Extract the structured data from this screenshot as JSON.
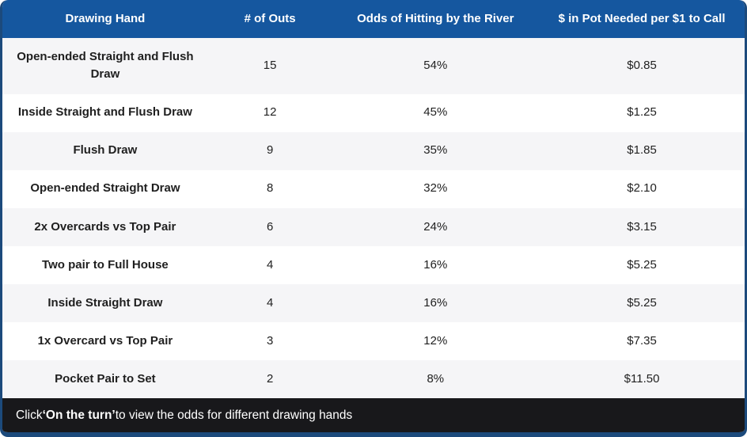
{
  "table": {
    "headers": [
      "Drawing Hand",
      "# of Outs",
      "Odds of Hitting by the River",
      "$ in Pot Needed per $1 to Call"
    ],
    "rows": [
      {
        "hand": "Open-ended Straight and Flush Draw",
        "outs": "15",
        "odds": "54%",
        "pot": "$0.85"
      },
      {
        "hand": "Inside Straight and Flush Draw",
        "outs": "12",
        "odds": "45%",
        "pot": "$1.25"
      },
      {
        "hand": "Flush Draw",
        "outs": "9",
        "odds": "35%",
        "pot": "$1.85"
      },
      {
        "hand": "Open-ended Straight Draw",
        "outs": "8",
        "odds": "32%",
        "pot": "$2.10"
      },
      {
        "hand": "2x Overcards vs Top Pair",
        "outs": "6",
        "odds": "24%",
        "pot": "$3.15"
      },
      {
        "hand": "Two pair to Full House",
        "outs": "4",
        "odds": "16%",
        "pot": "$5.25"
      },
      {
        "hand": "Inside Straight Draw",
        "outs": "4",
        "odds": "16%",
        "pot": "$5.25"
      },
      {
        "hand": "1x Overcard vs Top Pair",
        "outs": "3",
        "odds": "12%",
        "pot": "$7.35"
      },
      {
        "hand": "Pocket Pair to Set",
        "outs": "2",
        "odds": "8%",
        "pot": "$11.50"
      }
    ]
  },
  "footer": {
    "prefix": "Click ",
    "highlight": "‘On the turn’",
    "suffix": " to view the odds for different drawing hands"
  },
  "colors": {
    "header_bg": "#15579f",
    "border": "#1c4a7c",
    "footer_bg": "#18181b",
    "row_alt_bg": "#f5f5f7",
    "row_bg": "#ffffff",
    "header_text": "#ffffff",
    "body_text": "#222222"
  }
}
